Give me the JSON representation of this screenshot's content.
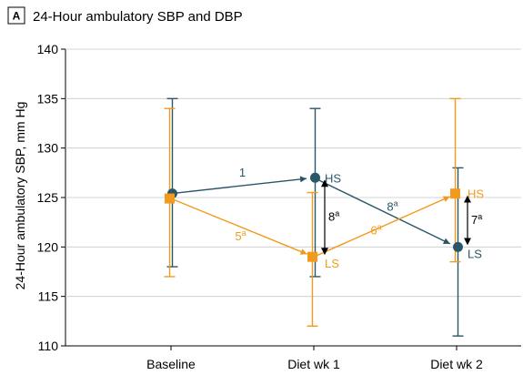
{
  "panel": {
    "letter": "A",
    "title": "24-Hour ambulatory SBP and DBP"
  },
  "colors": {
    "HS": "#2a5768",
    "LS": "#f29a1d",
    "axis": "#000000",
    "arrow": "#000000"
  },
  "chart_data": {
    "type": "line",
    "ylabel": "24-Hour ambulatory SBP, mm Hg",
    "xlabel": "",
    "ylim": [
      110,
      140
    ],
    "yticks": [
      110,
      115,
      120,
      125,
      130,
      135,
      140
    ],
    "categories": [
      "Baseline",
      "Diet wk 1",
      "Diet wk 2"
    ],
    "series": [
      {
        "name": "HS",
        "label_at": [
          null,
          "HS",
          "LS"
        ],
        "color_key": "HS",
        "marker": "circle",
        "values": [
          125.4,
          127.0,
          120.0
        ],
        "ci_low": [
          118.0,
          117.0,
          111.0
        ],
        "ci_high": [
          135.0,
          134.0,
          128.0
        ]
      },
      {
        "name": "LS",
        "label_at": [
          null,
          "LS",
          "HS"
        ],
        "color_key": "LS",
        "marker": "square",
        "values": [
          124.9,
          119.0,
          125.4
        ],
        "ci_low": [
          117.0,
          112.0,
          118.5
        ],
        "ci_high": [
          134.0,
          125.5,
          135.0
        ]
      }
    ],
    "segment_labels": [
      {
        "series": "HS",
        "from": 0,
        "to": 1,
        "text": "1",
        "sup": ""
      },
      {
        "series": "HS",
        "from": 1,
        "to": 2,
        "text": "8",
        "sup": "a"
      },
      {
        "series": "LS",
        "from": 0,
        "to": 1,
        "text": "5",
        "sup": "a"
      },
      {
        "series": "LS",
        "from": 1,
        "to": 2,
        "text": "6",
        "sup": "a"
      }
    ],
    "difference_arrows": [
      {
        "category": 1,
        "text": "8",
        "sup": "a"
      },
      {
        "category": 2,
        "text": "7",
        "sup": "a"
      }
    ]
  }
}
